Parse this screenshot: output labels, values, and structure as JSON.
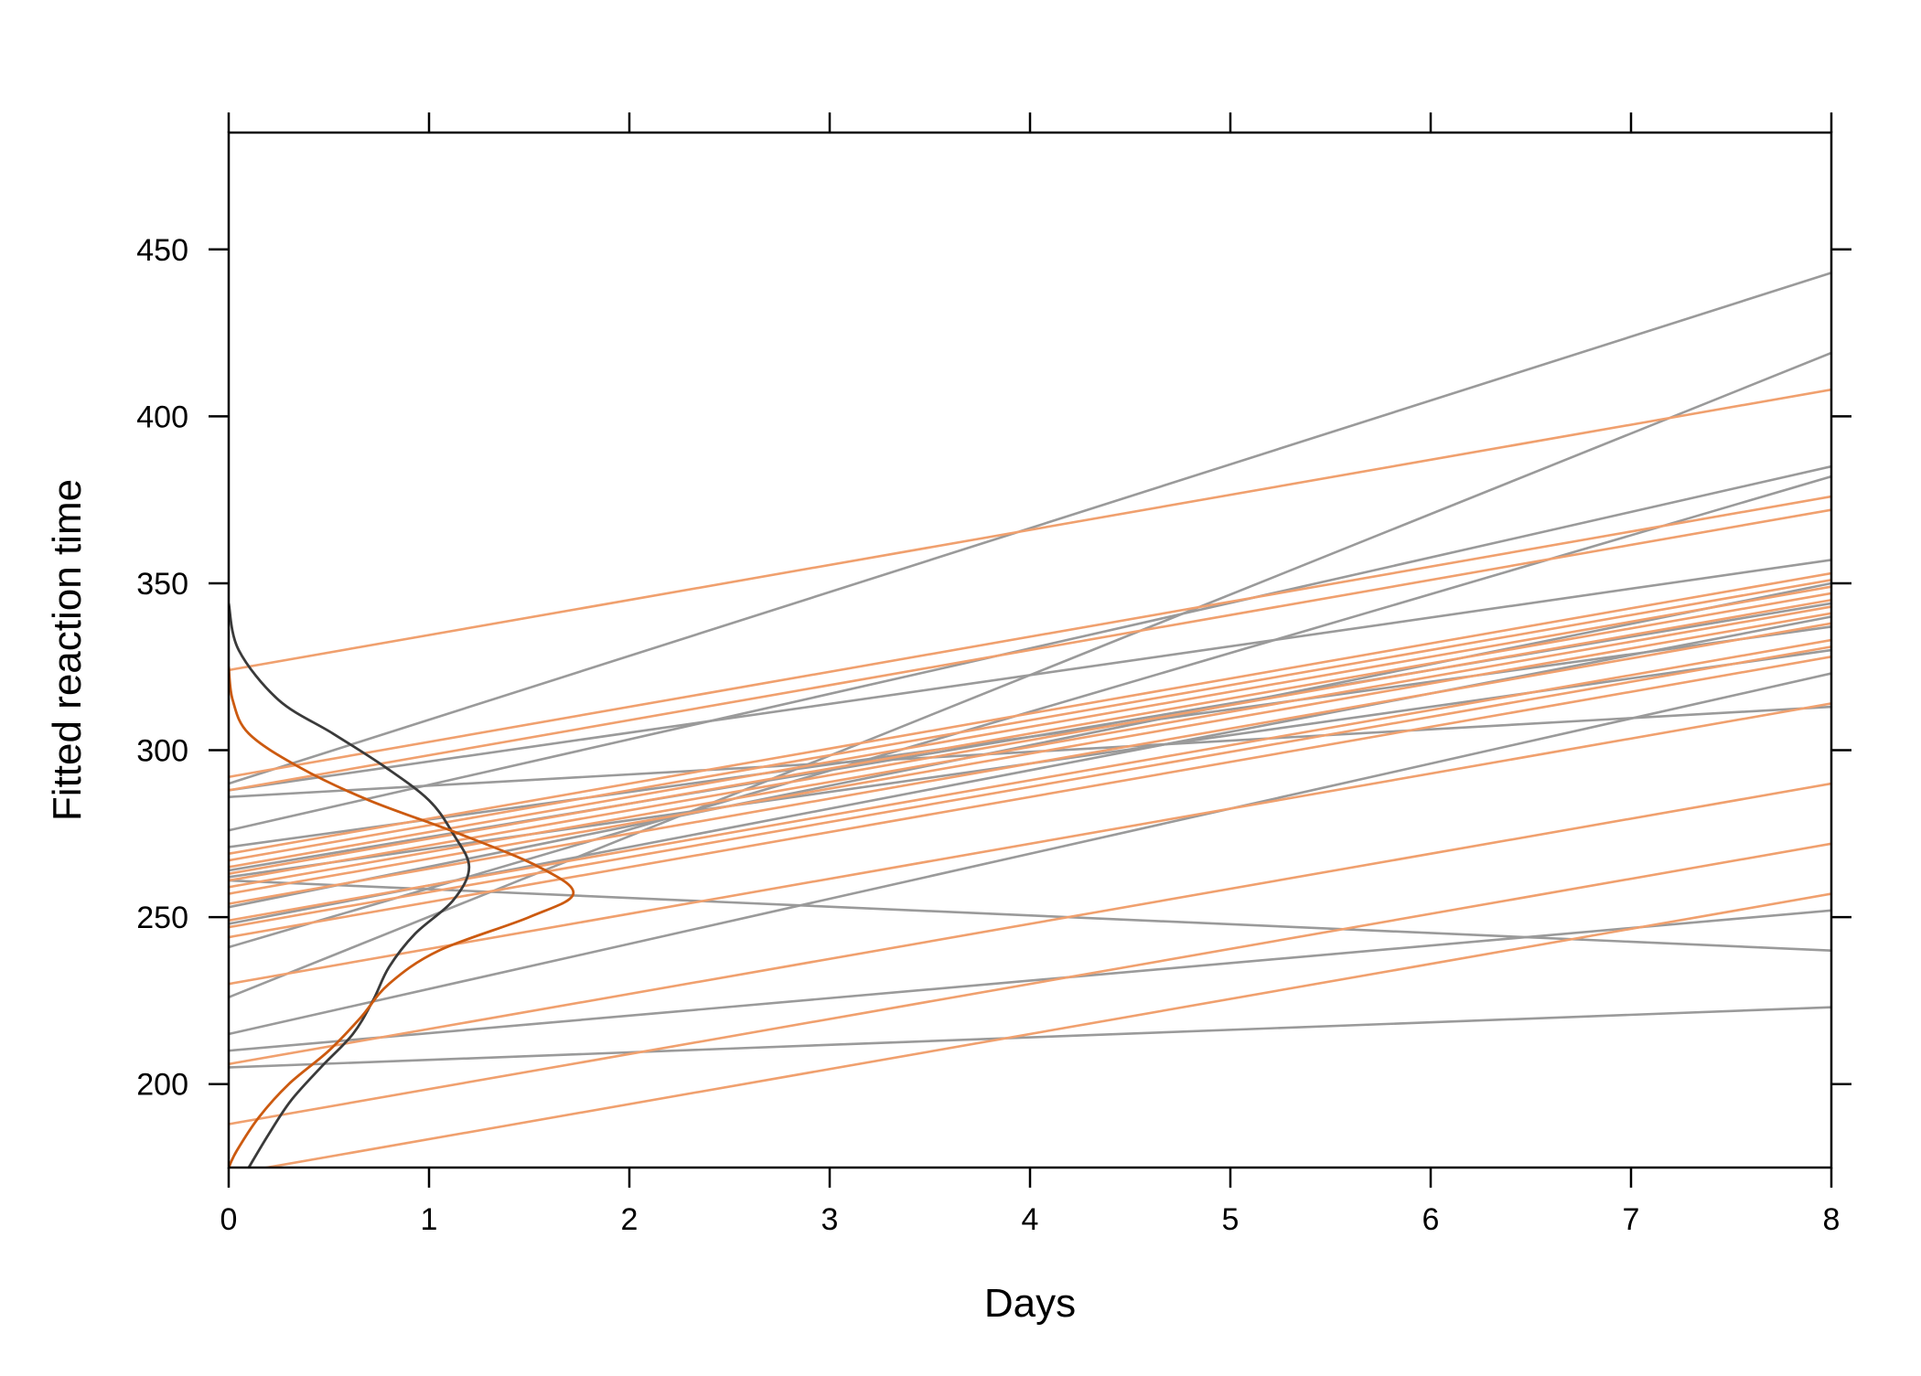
{
  "chart_data": {
    "type": "line",
    "title": "",
    "xlabel": "Days",
    "ylabel": "Fitted reaction time",
    "xlim": [
      0,
      8
    ],
    "ylim": [
      175,
      485
    ],
    "x_ticks": [
      0,
      1,
      2,
      3,
      4,
      5,
      6,
      7,
      8
    ],
    "y_ticks": [
      200,
      250,
      300,
      350,
      400,
      450
    ],
    "grid": false,
    "legend": "none",
    "colors": {
      "gray_lines": "#9a9a9a",
      "orange_lines": "#f0a06e",
      "gray_density": "#3a3a3a",
      "orange_density": "#cc5a10",
      "axis": "#000000"
    },
    "gray_lines": [
      {
        "day0": 290,
        "day8": 443
      },
      {
        "day0": 226,
        "day8": 419
      },
      {
        "day0": 276,
        "day8": 385
      },
      {
        "day0": 241,
        "day8": 382
      },
      {
        "day0": 288,
        "day8": 357
      },
      {
        "day0": 253,
        "day8": 350
      },
      {
        "day0": 264,
        "day8": 344
      },
      {
        "day0": 248,
        "day8": 340
      },
      {
        "day0": 271,
        "day8": 337
      },
      {
        "day0": 262,
        "day8": 330
      },
      {
        "day0": 215,
        "day8": 323
      },
      {
        "day0": 286,
        "day8": 313
      },
      {
        "day0": 261,
        "day8": 240
      },
      {
        "day0": 210,
        "day8": 252
      },
      {
        "day0": 205,
        "day8": 223
      }
    ],
    "orange_lines": [
      {
        "day0": 324,
        "day8": 408
      },
      {
        "day0": 292,
        "day8": 376
      },
      {
        "day0": 288,
        "day8": 372
      },
      {
        "day0": 269,
        "day8": 353
      },
      {
        "day0": 267,
        "day8": 351
      },
      {
        "day0": 265,
        "day8": 349
      },
      {
        "day0": 263,
        "day8": 347
      },
      {
        "day0": 261,
        "day8": 345
      },
      {
        "day0": 259,
        "day8": 343
      },
      {
        "day0": 257,
        "day8": 341
      },
      {
        "day0": 254,
        "day8": 338
      },
      {
        "day0": 249,
        "day8": 333
      },
      {
        "day0": 247,
        "day8": 331
      },
      {
        "day0": 244,
        "day8": 328
      },
      {
        "day0": 230,
        "day8": 314
      },
      {
        "day0": 206,
        "day8": 290
      },
      {
        "day0": 188,
        "day8": 272
      },
      {
        "day0": 173,
        "day8": 257
      }
    ],
    "gray_density": [
      [
        344,
        0.0
      ],
      [
        330,
        0.05
      ],
      [
        315,
        0.25
      ],
      [
        305,
        0.52
      ],
      [
        295,
        0.78
      ],
      [
        285,
        1.0
      ],
      [
        275,
        1.12
      ],
      [
        265,
        1.2
      ],
      [
        255,
        1.12
      ],
      [
        245,
        0.93
      ],
      [
        235,
        0.8
      ],
      [
        225,
        0.72
      ],
      [
        215,
        0.62
      ],
      [
        205,
        0.46
      ],
      [
        195,
        0.31
      ],
      [
        185,
        0.2
      ],
      [
        175,
        0.1
      ]
    ],
    "orange_density": [
      [
        325,
        0.0
      ],
      [
        315,
        0.02
      ],
      [
        305,
        0.1
      ],
      [
        295,
        0.35
      ],
      [
        285,
        0.7
      ],
      [
        275,
        1.15
      ],
      [
        265,
        1.55
      ],
      [
        257,
        1.72
      ],
      [
        250,
        1.5
      ],
      [
        240,
        1.05
      ],
      [
        230,
        0.8
      ],
      [
        220,
        0.66
      ],
      [
        210,
        0.5
      ],
      [
        200,
        0.3
      ],
      [
        190,
        0.15
      ],
      [
        180,
        0.04
      ],
      [
        175,
        0.0
      ]
    ]
  }
}
